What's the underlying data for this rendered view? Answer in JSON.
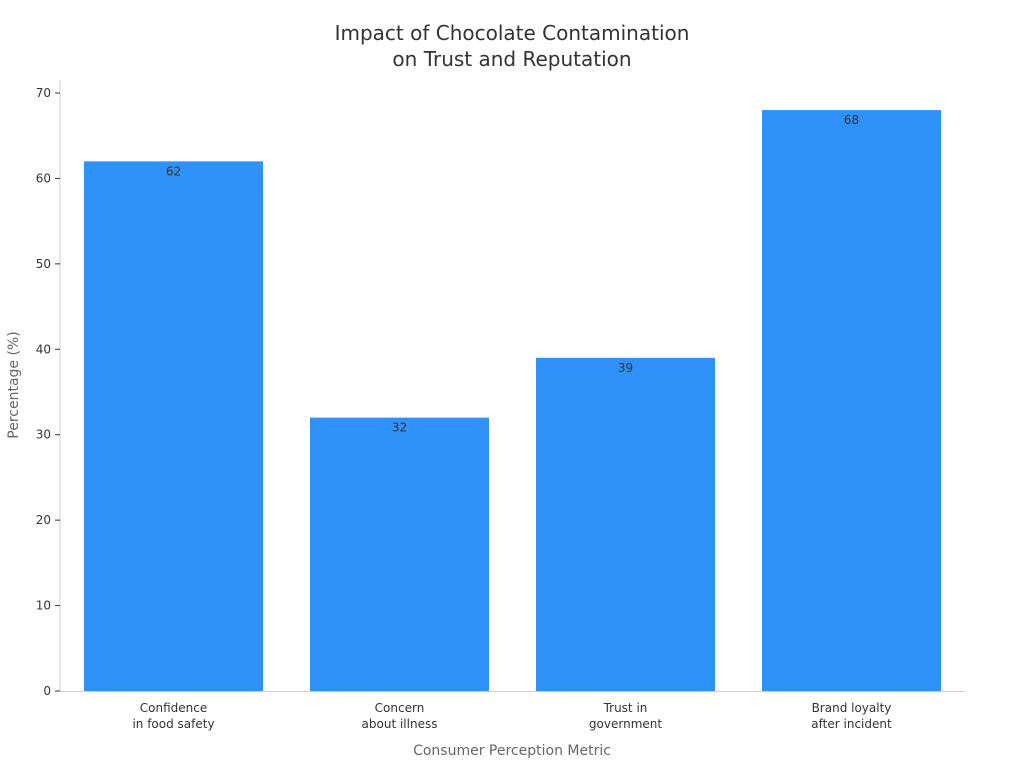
{
  "chart_data": {
    "type": "bar",
    "title": [
      "Impact of Chocolate Contamination",
      "on Trust and Reputation"
    ],
    "xlabel": "Consumer Perception Metric",
    "ylabel": "Percentage (%)",
    "categories": [
      [
        "Confidence",
        "in food safety"
      ],
      [
        "Concern",
        "about illness"
      ],
      [
        "Trust in",
        "government"
      ],
      [
        "Brand loyalty",
        "after incident"
      ]
    ],
    "values": [
      62,
      32,
      39,
      68
    ],
    "ylim": [
      0,
      70
    ],
    "yticks": [
      0,
      10,
      20,
      30,
      40,
      50,
      60,
      70
    ],
    "grid": false,
    "bar_color": "#3092f8",
    "data_labels": true
  }
}
